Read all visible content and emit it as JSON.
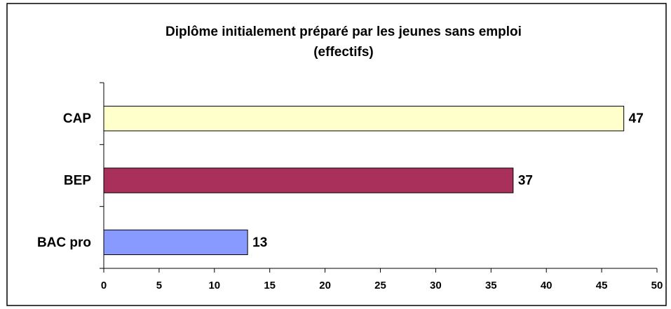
{
  "chart_data": {
    "type": "barh",
    "title": "Diplôme initialement préparé par les jeunes sans emploi",
    "subtitle": "(effectifs)",
    "categories": [
      "CAP",
      "BEP",
      "BAC pro"
    ],
    "values": [
      47,
      37,
      13
    ],
    "colors": [
      "#ffffcc",
      "#a8305a",
      "#8899ff"
    ],
    "xlim": [
      0,
      50
    ],
    "xticks": [
      0,
      5,
      10,
      15,
      20,
      25,
      30,
      35,
      40,
      45,
      50
    ],
    "grid": false
  }
}
